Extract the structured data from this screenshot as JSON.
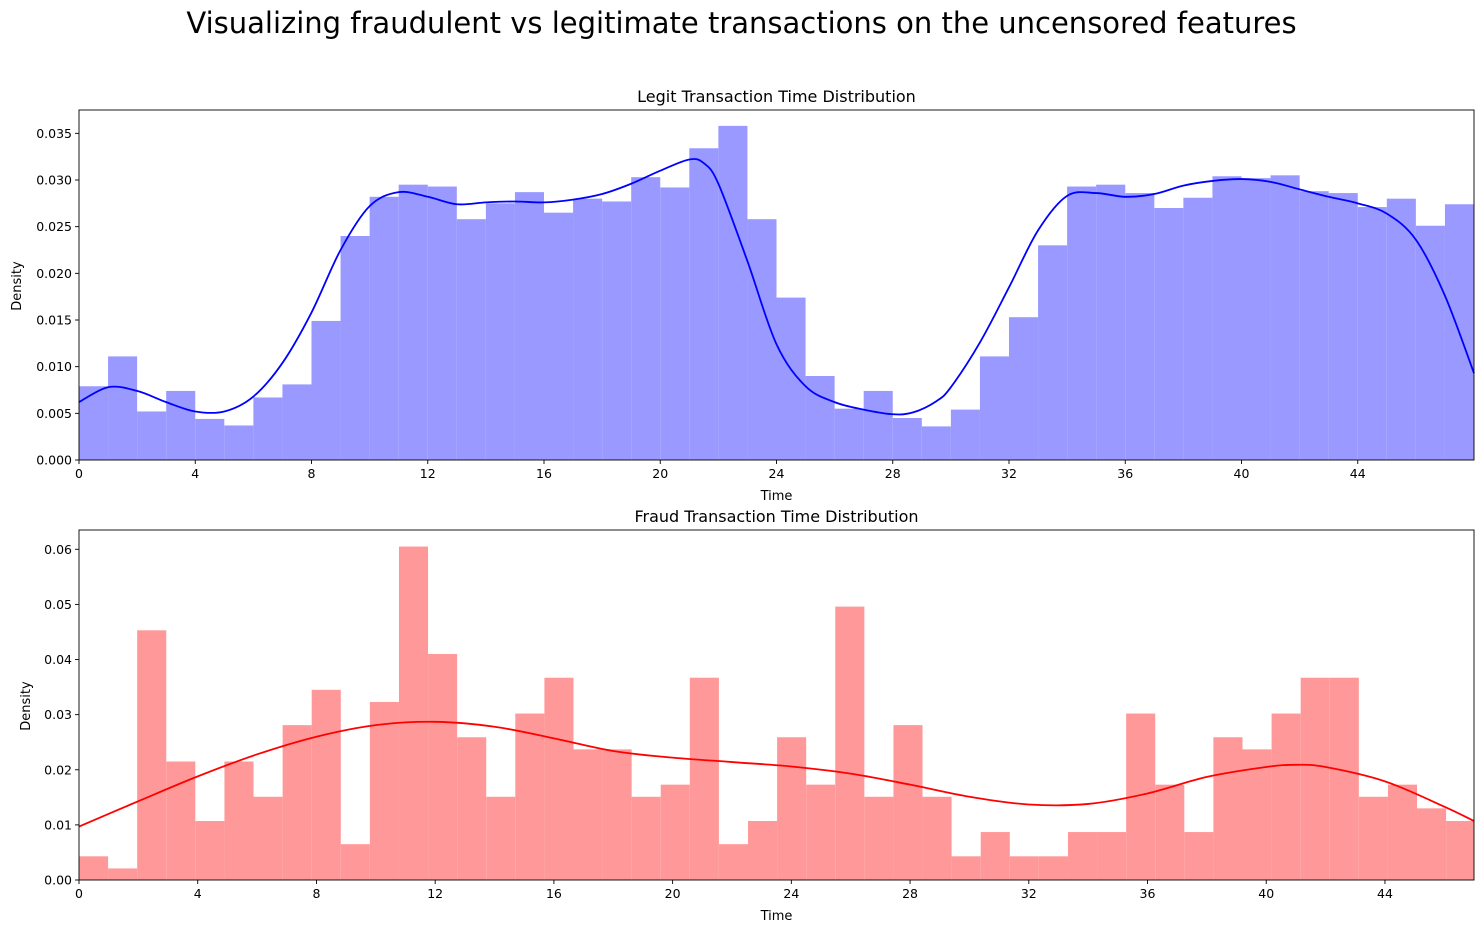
{
  "figure": {
    "title": "Visualizing fraudulent vs legitimate transactions on the uncensored features"
  },
  "chart_data": [
    {
      "type": "bar",
      "title": "Legit Transaction Time Distribution",
      "xlabel": "Time",
      "ylabel": "Density",
      "xlim": [
        0,
        48
      ],
      "ylim": [
        0,
        0.0375
      ],
      "xticks": [
        0,
        4,
        8,
        12,
        16,
        20,
        24,
        28,
        32,
        36,
        40,
        44
      ],
      "yticks": [
        0.0,
        0.005,
        0.01,
        0.015,
        0.02,
        0.025,
        0.03,
        0.035
      ],
      "ytick_labels": [
        "0.000",
        "0.005",
        "0.010",
        "0.015",
        "0.020",
        "0.025",
        "0.030",
        "0.035"
      ],
      "bar_color": "#9999ff",
      "line_color": "#0000ff",
      "bin_edges_start": 0,
      "bin_width": 1,
      "values": [
        0.0079,
        0.0111,
        0.0052,
        0.0074,
        0.0044,
        0.0037,
        0.0067,
        0.0081,
        0.0149,
        0.024,
        0.0282,
        0.0295,
        0.0293,
        0.0258,
        0.0275,
        0.0287,
        0.0265,
        0.028,
        0.0277,
        0.0303,
        0.0292,
        0.0334,
        0.0358,
        0.0258,
        0.0174,
        0.009,
        0.0055,
        0.0074,
        0.0045,
        0.0036,
        0.0054,
        0.0111,
        0.0153,
        0.023,
        0.0293,
        0.0295,
        0.0286,
        0.027,
        0.0281,
        0.0304,
        0.0302,
        0.0305,
        0.0288,
        0.0286,
        0.0271,
        0.028,
        0.0251,
        0.0274
      ],
      "kde": {
        "x": [
          0,
          1,
          2,
          3,
          4,
          5,
          6,
          7,
          8,
          9,
          10,
          11,
          12,
          13,
          14,
          15,
          16,
          17,
          18,
          19,
          20,
          21,
          21.5,
          22,
          23,
          24,
          25,
          26,
          27,
          28,
          28.7,
          29.5,
          30,
          31,
          32,
          33,
          34,
          35,
          36,
          37,
          38,
          39,
          40,
          41,
          42,
          43,
          44,
          45,
          46,
          47,
          48
        ],
        "y": [
          0.0062,
          0.0078,
          0.0074,
          0.0062,
          0.0052,
          0.0052,
          0.0068,
          0.0104,
          0.0158,
          0.0225,
          0.0272,
          0.0287,
          0.0282,
          0.0274,
          0.0276,
          0.0277,
          0.0276,
          0.0279,
          0.0285,
          0.0296,
          0.031,
          0.0322,
          0.0318,
          0.0296,
          0.0213,
          0.0124,
          0.0079,
          0.0062,
          0.0054,
          0.0049,
          0.0051,
          0.0063,
          0.0078,
          0.0126,
          0.0185,
          0.0246,
          0.0283,
          0.0286,
          0.0282,
          0.0285,
          0.0294,
          0.0299,
          0.0301,
          0.0298,
          0.029,
          0.0282,
          0.0275,
          0.0264,
          0.0236,
          0.0176,
          0.0093
        ]
      }
    },
    {
      "type": "bar",
      "title": "Fraud Transaction Time Distribution",
      "xlabel": "Time",
      "ylabel": "Density",
      "xlim": [
        0,
        47
      ],
      "ylim": [
        0,
        0.0635
      ],
      "xticks": [
        0,
        4,
        8,
        12,
        16,
        20,
        24,
        28,
        32,
        36,
        40,
        44
      ],
      "yticks": [
        0.0,
        0.01,
        0.02,
        0.03,
        0.04,
        0.05,
        0.06
      ],
      "ytick_labels": [
        "0.00",
        "0.01",
        "0.02",
        "0.03",
        "0.04",
        "0.05",
        "0.06"
      ],
      "bar_color": "#ff9999",
      "line_color": "#ff0000",
      "bin_edges_start": 0,
      "bin_width": 0.98,
      "values": [
        0.0043,
        0.0021,
        0.0453,
        0.0215,
        0.0107,
        0.0215,
        0.0151,
        0.0281,
        0.0345,
        0.0065,
        0.0323,
        0.0605,
        0.041,
        0.0259,
        0.0151,
        0.0302,
        0.0367,
        0.0237,
        0.0237,
        0.0151,
        0.0173,
        0.0367,
        0.0065,
        0.0107,
        0.0259,
        0.0173,
        0.0496,
        0.0151,
        0.0281,
        0.0151,
        0.0043,
        0.0087,
        0.0043,
        0.0043,
        0.0087,
        0.0087,
        0.0302,
        0.0173,
        0.0087,
        0.0259,
        0.0237,
        0.0302,
        0.0367,
        0.0367,
        0.0151,
        0.0173,
        0.013,
        0.0107
      ],
      "kde": {
        "x": [
          0,
          2,
          4,
          6,
          8,
          10,
          12,
          14,
          16,
          18,
          20,
          22,
          24,
          26,
          28,
          30,
          32,
          34,
          36,
          38,
          40,
          41,
          42,
          44,
          46,
          47
        ],
        "y": [
          0.0097,
          0.0143,
          0.0188,
          0.0228,
          0.026,
          0.0281,
          0.0287,
          0.0278,
          0.0257,
          0.0234,
          0.0222,
          0.0214,
          0.0206,
          0.0193,
          0.0173,
          0.0151,
          0.0137,
          0.0138,
          0.0157,
          0.0187,
          0.0205,
          0.0209,
          0.0205,
          0.0179,
          0.0133,
          0.0107
        ]
      }
    }
  ]
}
